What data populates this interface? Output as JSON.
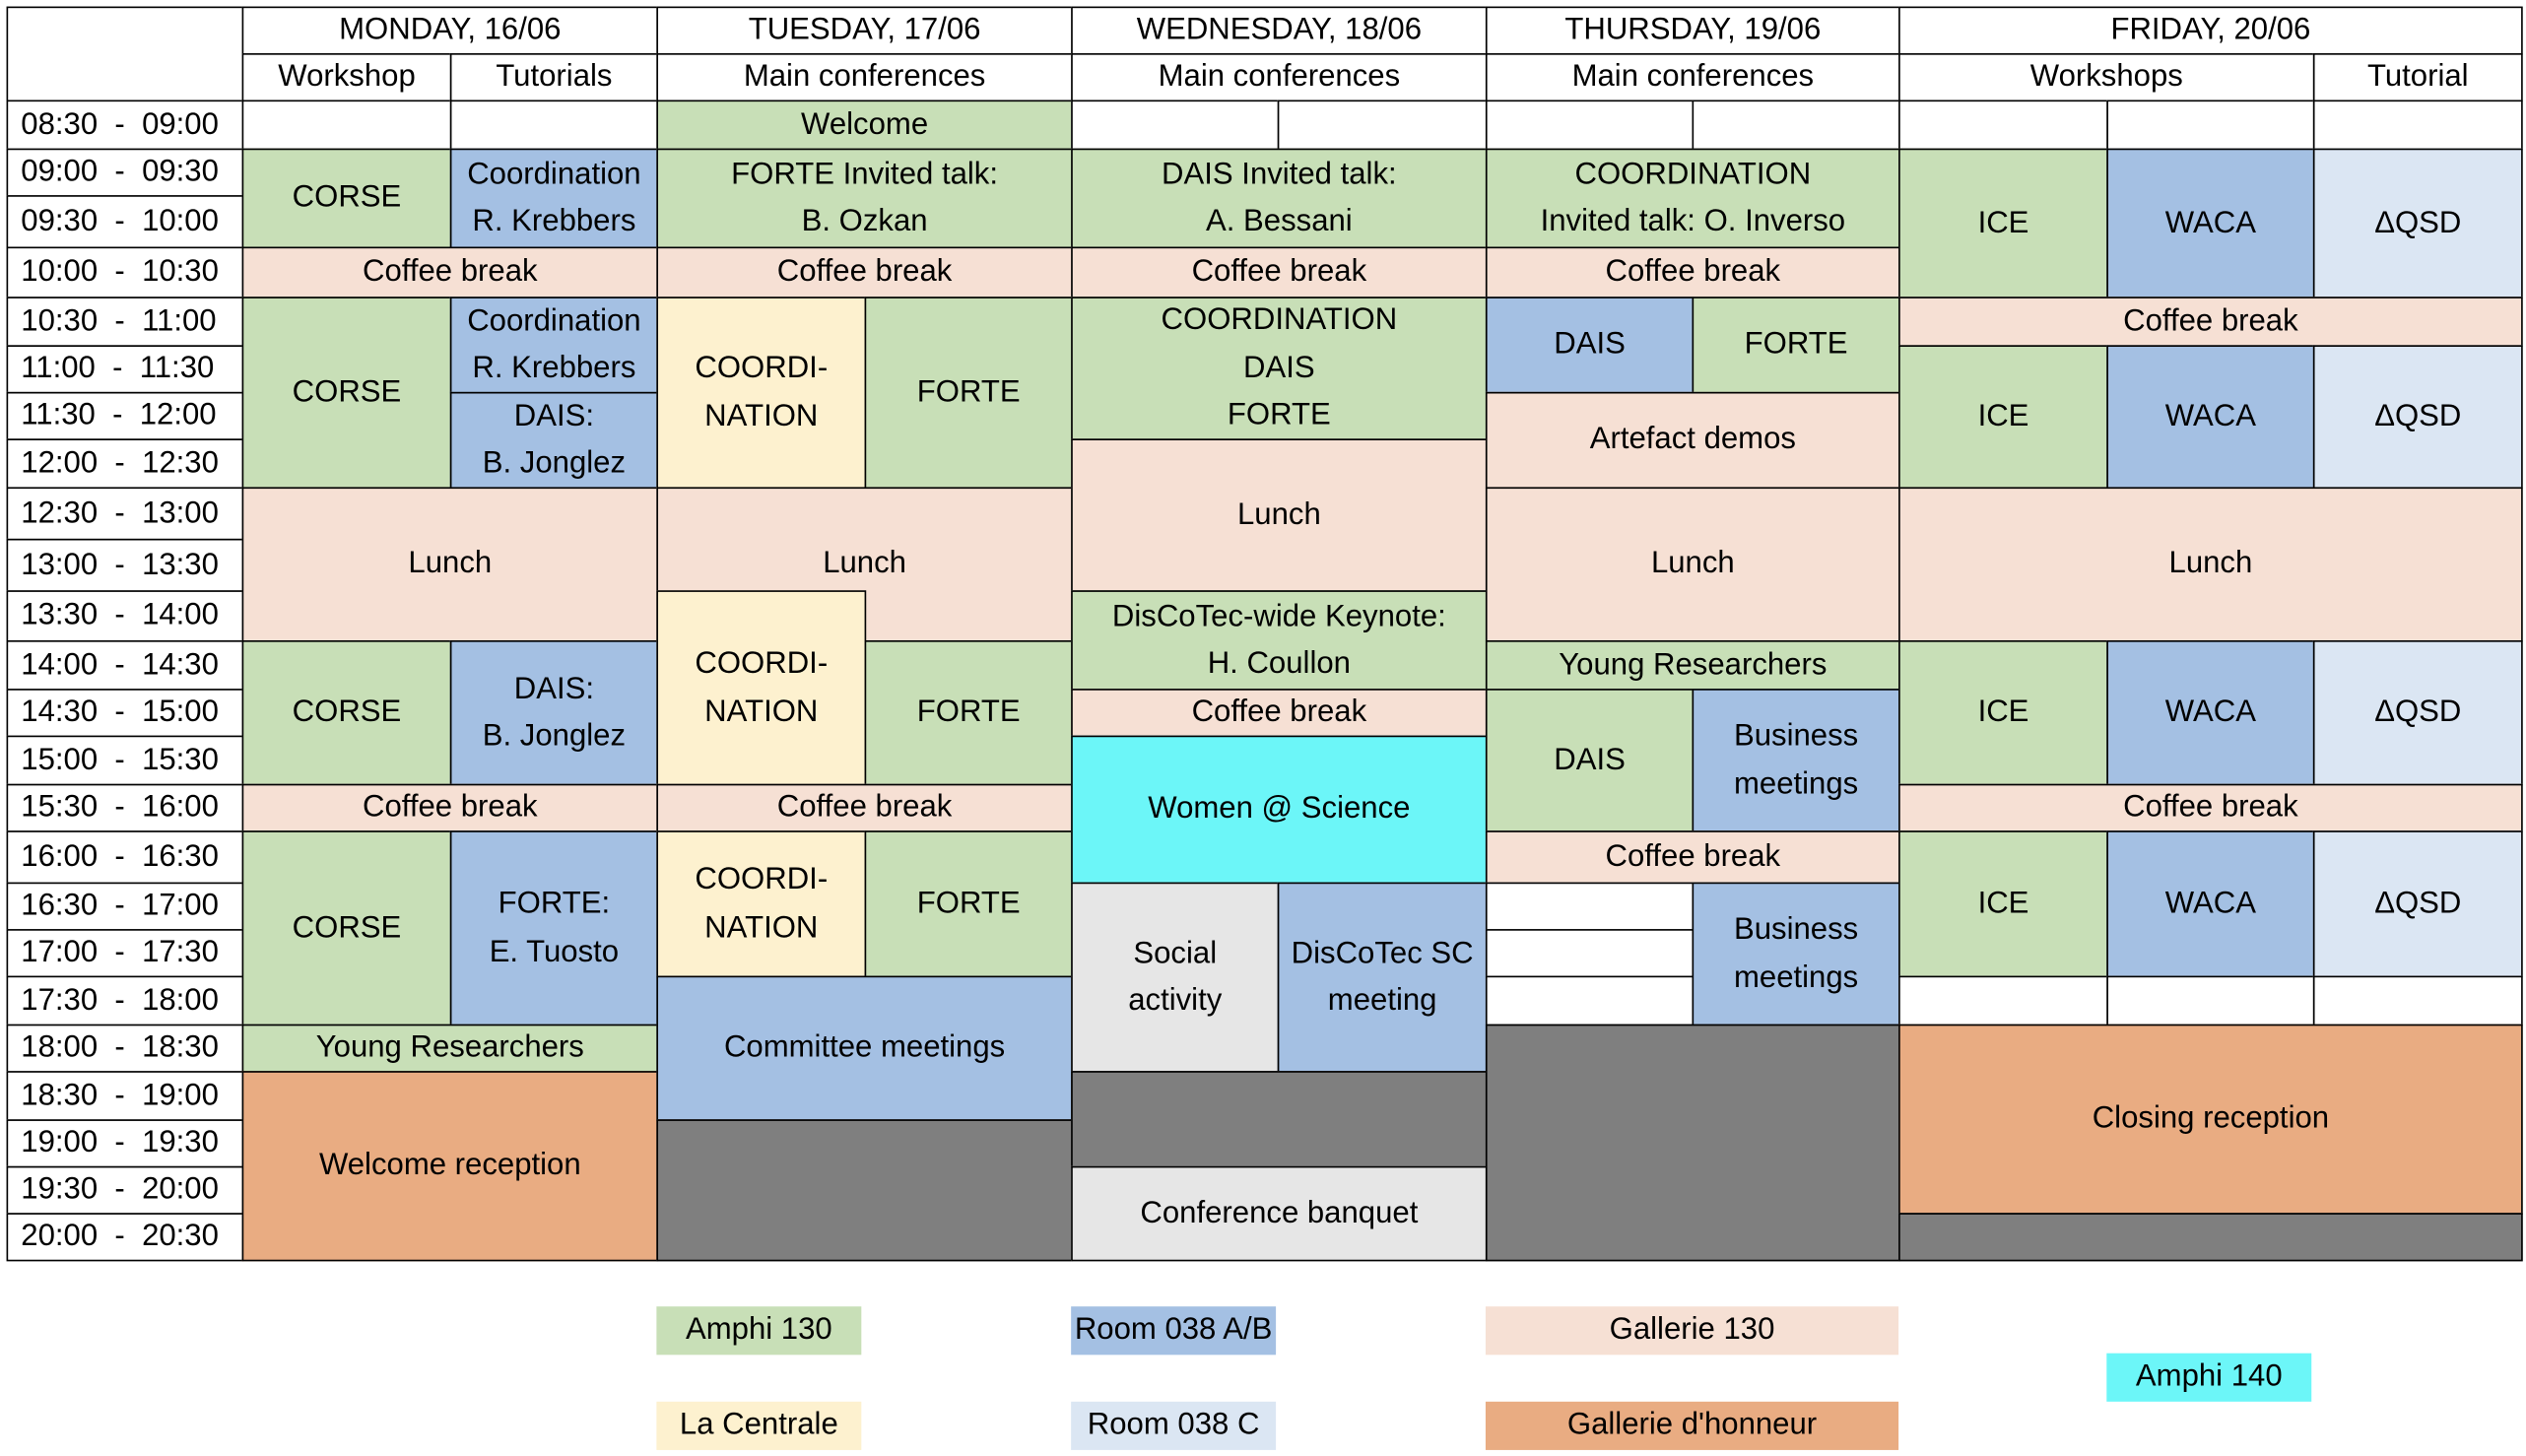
{
  "colors": {
    "amphi130": "#c8dfb7",
    "room038ab": "#a4c0e3",
    "gallerie130": "#f6e0d4",
    "lacentrale": "#fdf1cf",
    "room038c": "#dbe6f3",
    "gallerie_honneur": "#e9ac82",
    "amphi140": "#6cf6f8",
    "gray": "#7f7f7f",
    "light": "#e6e6e6",
    "white": "#ffffff"
  },
  "days": [
    {
      "label": "MONDAY, 16/06"
    },
    {
      "label": "TUESDAY, 17/06"
    },
    {
      "label": "WEDNESDAY, 18/06"
    },
    {
      "label": "THURSDAY, 19/06"
    },
    {
      "label": "FRIDAY, 20/06"
    }
  ],
  "subheaders": [
    {
      "label": "Workshop"
    },
    {
      "label": "Tutorials"
    },
    {
      "label": "Main conferences"
    },
    {
      "label": "Main conferences"
    },
    {
      "label": "Main conferences"
    },
    {
      "label": "Workshops"
    },
    {
      "label": "Tutorial"
    }
  ],
  "times": [
    "08:30  -  09:00",
    "09:00  -  09:30",
    "09:30  -  10:00",
    "10:00  -  10:30",
    "10:30  -  11:00",
    "11:00  -  11:30",
    "11:30  -  12:00",
    "12:00  -  12:30",
    "12:30  -  13:00",
    "13:00  -  13:30",
    "13:30  -  14:00",
    "14:00  -  14:30",
    "14:30  -  15:00",
    "15:00  -  15:30",
    "15:30  -  16:00",
    "16:00  -  16:30",
    "16:30  -  17:00",
    "17:00  -  17:30",
    "17:30  -  18:00",
    "18:00  -  18:30",
    "18:30  -  19:00",
    "19:00  -  19:30",
    "19:30  -  20:00",
    "20:00  -  20:30"
  ],
  "events": [
    {
      "name": "event-welcome",
      "text": "Welcome",
      "room": "amphi130"
    },
    {
      "name": "event-corse",
      "text": "CORSE",
      "room": "amphi130"
    },
    {
      "name": "event-coordination-tutorial",
      "text": "Coordination\nR. Krebbers",
      "room": "room038ab"
    },
    {
      "name": "event-forte-invited-talk",
      "text": "FORTE Invited talk:\nB. Ozkan",
      "room": "amphi130"
    },
    {
      "name": "event-dais-invited-talk",
      "text": "DAIS Invited talk:\nA. Bessani",
      "room": "amphi130"
    },
    {
      "name": "event-coordination-invited-talk",
      "text": "COORDINATION\nInvited talk: O. Inverso",
      "room": "amphi130"
    },
    {
      "name": "event-ice",
      "text": "ICE",
      "room": "amphi130"
    },
    {
      "name": "event-waca",
      "text": "WACA",
      "room": "room038ab"
    },
    {
      "name": "event-qsd",
      "text": "ΔQSD",
      "room": "room038c"
    },
    {
      "name": "event-coffee-break",
      "text": "Coffee break",
      "room": "gallerie130"
    },
    {
      "name": "event-coordination-parallel",
      "text": "COORDI-\nNATION",
      "room": "lacentrale"
    },
    {
      "name": "event-forte",
      "text": "FORTE",
      "room": "amphi130"
    },
    {
      "name": "event-joint-session",
      "text": "COORDINATION\nDAIS\nFORTE",
      "room": "amphi130"
    },
    {
      "name": "event-dais",
      "text": "DAIS",
      "room": "room038ab"
    },
    {
      "name": "event-dais-tutorial",
      "text": "DAIS:\nB. Jonglez",
      "room": "room038ab"
    },
    {
      "name": "event-artefact-demos",
      "text": "Artefact demos",
      "room": "gallerie130"
    },
    {
      "name": "event-lunch",
      "text": "Lunch",
      "room": "gallerie130"
    },
    {
      "name": "event-keynote",
      "text": "DisCoTec-wide Keynote:\nH. Coullon",
      "room": "amphi130"
    },
    {
      "name": "event-young-researchers",
      "text": "Young Researchers",
      "room": "amphi130"
    },
    {
      "name": "event-business-meetings",
      "text": "Business\nmeetings",
      "room": "room038ab"
    },
    {
      "name": "event-women-science",
      "text": "Women @ Science",
      "room": "amphi140"
    },
    {
      "name": "event-forte-tutorial",
      "text": "FORTE:\nE. Tuosto",
      "room": "room038ab"
    },
    {
      "name": "event-social-activity",
      "text": "Social\nactivity",
      "room": "light"
    },
    {
      "name": "event-sc-meeting",
      "text": "DisCoTec SC\nmeeting",
      "room": "room038ab"
    },
    {
      "name": "event-committee-meetings",
      "text": "Committee meetings",
      "room": "room038ab"
    },
    {
      "name": "event-welcome-reception",
      "text": "Welcome reception",
      "room": "gallerie_honneur"
    },
    {
      "name": "event-closing-reception",
      "text": "Closing reception",
      "room": "gallerie_honneur"
    },
    {
      "name": "event-conference-banquet",
      "text": "Conference banquet",
      "room": "light"
    },
    {
      "name": "event-dais-session",
      "text": "DAIS",
      "room": "amphi130"
    }
  ],
  "legend": [
    {
      "label": "Amphi 130",
      "room": "amphi130"
    },
    {
      "label": "Room 038 A/B",
      "room": "room038ab"
    },
    {
      "label": "Gallerie 130",
      "room": "gallerie130"
    },
    {
      "label": "Amphi 140",
      "room": "amphi140"
    },
    {
      "label": "La Centrale",
      "room": "lacentrale"
    },
    {
      "label": "Room 038 C",
      "room": "room038c"
    },
    {
      "label": "Gallerie d'honneur",
      "room": "gallerie_honneur"
    }
  ]
}
